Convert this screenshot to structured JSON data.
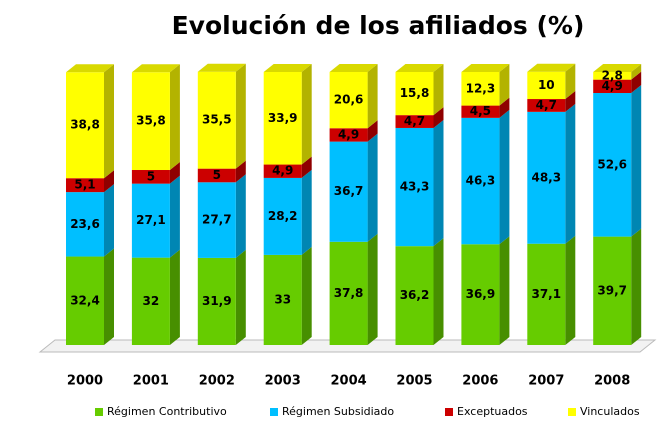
{
  "chart_data": {
    "type": "stacked_bar_3d",
    "title": "Evolución de los afiliados (%)",
    "categories": [
      "2000",
      "2001",
      "2002",
      "2003",
      "2004",
      "2005",
      "2006",
      "2007",
      "2008"
    ],
    "ylim": [
      0,
      100
    ],
    "series": [
      {
        "name": "Régimen Contributivo",
        "color": "#66cc00",
        "values": [
          32.4,
          32,
          31.9,
          33,
          37.8,
          36.2,
          36.9,
          37.1,
          39.7
        ],
        "value_labels": [
          "32,4",
          "32",
          "31,9",
          "33",
          "37,8",
          "36,2",
          "36,9",
          "37,1",
          "39,7"
        ]
      },
      {
        "name": "Régimen Subsidiado",
        "color": "#00bfff",
        "values": [
          23.6,
          27.1,
          27.7,
          28.2,
          36.7,
          43.3,
          46.3,
          48.3,
          52.6
        ],
        "value_labels": [
          "23,6",
          "27,1",
          "27,7",
          "28,2",
          "36,7",
          "43,3",
          "46,3",
          "48,3",
          "52,6"
        ]
      },
      {
        "name": "Exceptuados",
        "color": "#cc0000",
        "values": [
          5.1,
          5,
          5,
          4.9,
          4.9,
          4.7,
          4.5,
          4.7,
          4.9
        ],
        "value_labels": [
          "5,1",
          "5",
          "5",
          "4,9",
          "4,9",
          "4,7",
          "4,5",
          "4,7",
          "4,9"
        ]
      },
      {
        "name": "Vinculados",
        "color": "#ffff00",
        "values": [
          38.8,
          35.8,
          35.5,
          33.9,
          20.6,
          15.8,
          12.3,
          10,
          2.8
        ],
        "value_labels": [
          "38,8",
          "35,8",
          "35,5",
          "33,9",
          "20,6",
          "15,8",
          "12,3",
          "10",
          "2,8"
        ]
      }
    ]
  }
}
